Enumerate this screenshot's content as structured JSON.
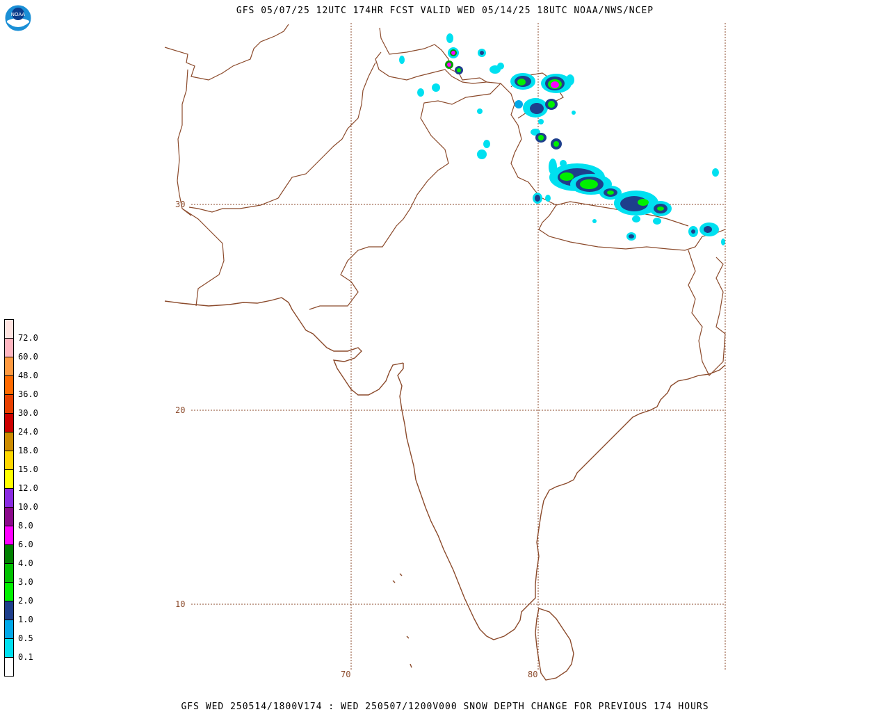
{
  "header": {
    "title": "GFS 05/07/25 12UTC 174HR FCST VALID WED 05/14/25 18UTC NOAA/NWS/NCEP",
    "logo_text": "NOAA"
  },
  "footer": {
    "title": "GFS WED 250514/1800V174 : WED 250507/1200V000 SNOW DEPTH CHANGE FOR PREVIOUS 174 HOURS"
  },
  "map": {
    "lat_labels": [
      "30",
      "20",
      "10"
    ],
    "lon_labels": [
      "70",
      "80"
    ],
    "grid_color": "#8b4a2b",
    "border_color": "#8b4a2b"
  },
  "legend": {
    "levels": [
      {
        "label": "",
        "color": "#ffffff"
      },
      {
        "label": "0.1",
        "color": "#00e0f0"
      },
      {
        "label": "0.5",
        "color": "#00a8e8"
      },
      {
        "label": "1.0",
        "color": "#1e3f8c"
      },
      {
        "label": "2.0",
        "color": "#00f000"
      },
      {
        "label": "3.0",
        "color": "#00c000"
      },
      {
        "label": "4.0",
        "color": "#008000"
      },
      {
        "label": "6.0",
        "color": "#ff00ff"
      },
      {
        "label": "8.0",
        "color": "#8b0a8b"
      },
      {
        "label": "10.0",
        "color": "#8a2be2"
      },
      {
        "label": "12.0",
        "color": "#ffff00"
      },
      {
        "label": "15.0",
        "color": "#ffd700"
      },
      {
        "label": "18.0",
        "color": "#cd8c00"
      },
      {
        "label": "24.0",
        "color": "#cc0000"
      },
      {
        "label": "30.0",
        "color": "#e84000"
      },
      {
        "label": "36.0",
        "color": "#ff6a00"
      },
      {
        "label": "48.0",
        "color": "#ff9a40"
      },
      {
        "label": "60.0",
        "color": "#ffb6c1"
      },
      {
        "label": "72.0",
        "color": "#ffe4e1"
      }
    ]
  }
}
